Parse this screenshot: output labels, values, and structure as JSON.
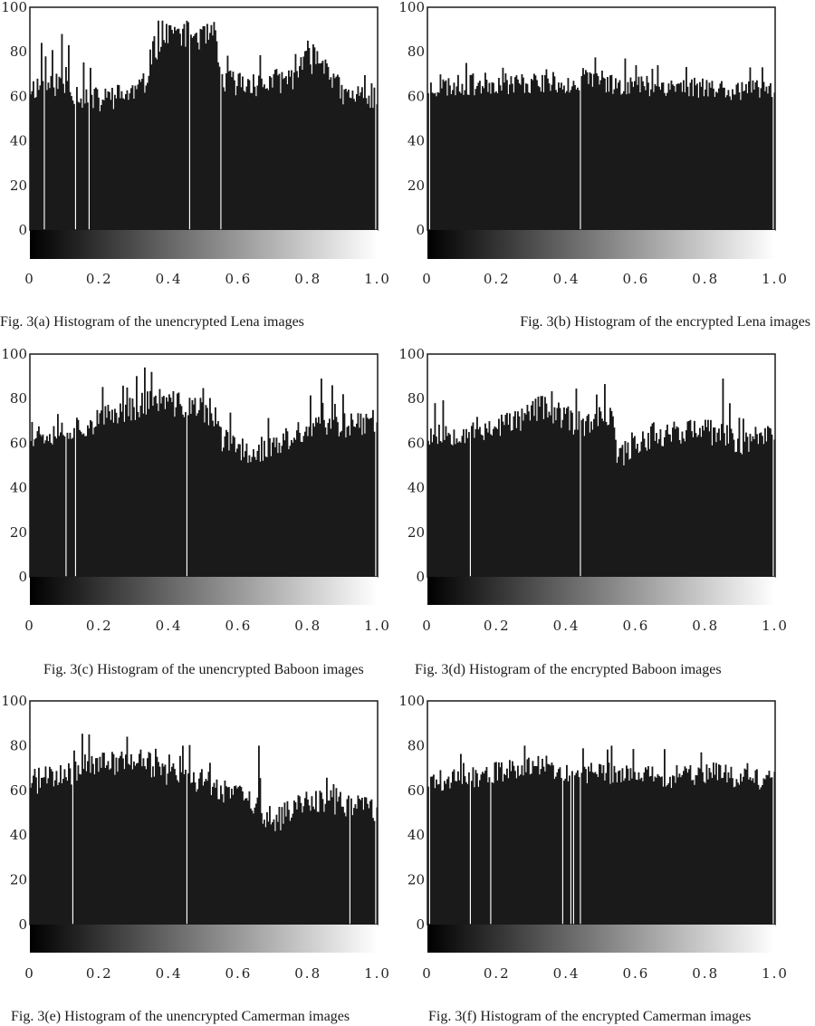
{
  "figure": {
    "axis": {
      "y_ticks": [
        "0",
        "20",
        "40",
        "60",
        "80",
        "100"
      ],
      "x_ticks": [
        "0",
        "0.2",
        "0.4",
        "0.6",
        "0.8",
        "1.0"
      ]
    }
  },
  "chart_data": [
    {
      "id": "a",
      "type": "bar",
      "caption": "Fig. 3(a) Histogram of the unencrypted Lena images",
      "bins": 256,
      "xlim": [
        0,
        1
      ],
      "ylim": [
        0,
        100
      ],
      "color": "#1a1a1a",
      "profile": [
        [
          0,
          64
        ],
        [
          0.08,
          66
        ],
        [
          0.15,
          60
        ],
        [
          0.2,
          58
        ],
        [
          0.3,
          62
        ],
        [
          0.33,
          65
        ],
        [
          0.35,
          80
        ],
        [
          0.4,
          88
        ],
        [
          0.46,
          88
        ],
        [
          0.5,
          86
        ],
        [
          0.53,
          88
        ],
        [
          0.55,
          67
        ],
        [
          0.65,
          65
        ],
        [
          0.75,
          68
        ],
        [
          0.8,
          76
        ],
        [
          0.85,
          76
        ],
        [
          0.9,
          60
        ],
        [
          1.0,
          60
        ]
      ],
      "noise": 6,
      "seed": 11,
      "spikes": [
        [
          0.03,
          84
        ],
        [
          0.09,
          88
        ],
        [
          0.11,
          83
        ],
        [
          0.37,
          94
        ],
        [
          0.38,
          94
        ],
        [
          0.52,
          92
        ],
        [
          0.8,
          85
        ],
        [
          0.82,
          82
        ]
      ],
      "gaps": [
        0.04,
        0.13,
        0.17,
        0.46,
        0.55,
        0.995
      ]
    },
    {
      "id": "b",
      "type": "bar",
      "caption": "Fig. 3(b)  Histogram of the encrypted Lena images",
      "bins": 256,
      "xlim": [
        0,
        1
      ],
      "ylim": [
        0,
        100
      ],
      "color": "#1a1a1a",
      "profile": [
        [
          0,
          64
        ],
        [
          0.2,
          66
        ],
        [
          0.5,
          66
        ],
        [
          0.8,
          64
        ],
        [
          1.0,
          62
        ]
      ],
      "noise": 5,
      "seed": 23,
      "spikes": [
        [
          0.11,
          75
        ],
        [
          0.57,
          77
        ],
        [
          0.6,
          74
        ],
        [
          0.93,
          73
        ]
      ],
      "gaps": [
        0.005,
        0.44,
        0.995
      ]
    },
    {
      "id": "c",
      "type": "bar",
      "caption": "Fig. 3(c) Histogram of the unencrypted Baboon images",
      "bins": 256,
      "xlim": [
        0,
        1
      ],
      "ylim": [
        0,
        100
      ],
      "color": "#1a1a1a",
      "profile": [
        [
          0,
          64
        ],
        [
          0.1,
          66
        ],
        [
          0.2,
          70
        ],
        [
          0.25,
          74
        ],
        [
          0.3,
          76
        ],
        [
          0.35,
          80
        ],
        [
          0.4,
          78
        ],
        [
          0.47,
          76
        ],
        [
          0.5,
          74
        ],
        [
          0.53,
          72
        ],
        [
          0.55,
          62
        ],
        [
          0.62,
          56
        ],
        [
          0.7,
          58
        ],
        [
          0.8,
          66
        ],
        [
          0.9,
          68
        ],
        [
          1.0,
          70
        ]
      ],
      "noise": 6,
      "seed": 37,
      "spikes": [
        [
          0.33,
          94
        ],
        [
          0.35,
          92
        ],
        [
          0.28,
          85
        ],
        [
          0.84,
          89
        ],
        [
          0.87,
          86
        ],
        [
          0.9,
          82
        ]
      ],
      "gaps": [
        0.1,
        0.13,
        0.45,
        0.995
      ]
    },
    {
      "id": "d",
      "type": "bar",
      "caption": "Fig. 3(d) Histogram of the encrypted Baboon images",
      "bins": 256,
      "xlim": [
        0,
        1
      ],
      "ylim": [
        0,
        100
      ],
      "color": "#1a1a1a",
      "profile": [
        [
          0,
          64
        ],
        [
          0.15,
          66
        ],
        [
          0.25,
          70
        ],
        [
          0.3,
          74
        ],
        [
          0.33,
          76
        ],
        [
          0.38,
          72
        ],
        [
          0.45,
          68
        ],
        [
          0.53,
          72
        ],
        [
          0.55,
          52
        ],
        [
          0.58,
          58
        ],
        [
          0.65,
          64
        ],
        [
          0.75,
          66
        ],
        [
          0.85,
          64
        ],
        [
          0.9,
          60
        ],
        [
          1.0,
          66
        ]
      ],
      "noise": 6,
      "seed": 53,
      "spikes": [
        [
          0.85,
          89
        ],
        [
          0.31,
          80
        ],
        [
          0.12,
          79
        ]
      ],
      "gaps": [
        0.12,
        0.44,
        0.995
      ]
    },
    {
      "id": "e",
      "type": "bar",
      "caption": "Fig. 3(e) Histogram of the unencrypted Camerman images",
      "bins": 256,
      "xlim": [
        0,
        1
      ],
      "ylim": [
        0,
        100
      ],
      "color": "#1a1a1a",
      "profile": [
        [
          0,
          64
        ],
        [
          0.1,
          66
        ],
        [
          0.15,
          70
        ],
        [
          0.2,
          72
        ],
        [
          0.3,
          74
        ],
        [
          0.4,
          68
        ],
        [
          0.5,
          64
        ],
        [
          0.6,
          58
        ],
        [
          0.66,
          52
        ],
        [
          0.7,
          46
        ],
        [
          0.75,
          50
        ],
        [
          0.8,
          56
        ],
        [
          0.9,
          54
        ],
        [
          1.0,
          52
        ]
      ],
      "noise": 6,
      "seed": 71,
      "spikes": [
        [
          0.17,
          85
        ],
        [
          0.28,
          84
        ],
        [
          0.44,
          80
        ],
        [
          0.66,
          80
        ]
      ],
      "gaps": [
        0.12,
        0.45,
        0.92,
        0.995
      ]
    },
    {
      "id": "f",
      "type": "bar",
      "caption": "Fig. 3(f) Histogram of the encrypted Camerman images",
      "bins": 256,
      "xlim": [
        0,
        1
      ],
      "ylim": [
        0,
        100
      ],
      "color": "#1a1a1a",
      "profile": [
        [
          0,
          64
        ],
        [
          0.15,
          66
        ],
        [
          0.25,
          70
        ],
        [
          0.3,
          72
        ],
        [
          0.4,
          68
        ],
        [
          0.5,
          68
        ],
        [
          0.7,
          66
        ],
        [
          0.8,
          68
        ],
        [
          0.9,
          66
        ],
        [
          1.0,
          64
        ]
      ],
      "noise": 5,
      "seed": 89,
      "spikes": [
        [
          0.28,
          80
        ],
        [
          0.53,
          80
        ],
        [
          0.79,
          77
        ]
      ],
      "gaps": [
        0.005,
        0.12,
        0.18,
        0.39,
        0.41,
        0.42,
        0.44,
        0.995
      ]
    }
  ]
}
